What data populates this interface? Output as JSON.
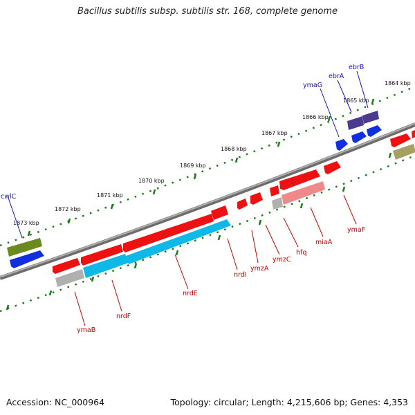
{
  "title": "Bacillus subtilis subsp. subtilis str. 168, complete genome",
  "footer": {
    "accession": "Accession: NC_000964",
    "topology": "Topology: circular; Length: 4,215,606 bp; Genes: 4,353"
  },
  "ruler_labels": [
    "1864 kbp",
    "1865 kbp",
    "1866 kbp",
    "1867 kbp",
    "1868 kbp",
    "1869 kbp",
    "1870 kbp",
    "1871 kbp",
    "1872 kbp",
    "1873 kbp"
  ],
  "top_gene_labels": [
    "ebrB",
    "ebrA",
    "ymaG",
    "cwlC"
  ],
  "bottom_gene_labels": [
    "ymaF",
    "miaA",
    "hfq",
    "ymzC",
    "ymzA",
    "nrdI",
    "nrdE",
    "nrdF",
    "ymaB"
  ],
  "colors": {
    "backbone": "#808080",
    "ruler_dot": "#1a7a1a",
    "gene_red": "#ee1111",
    "cds_cyan": "#10b8e8",
    "forward_blue": "#1030e0",
    "label_blue": "#1010cc",
    "label_red": "#cc0000",
    "olive": "#6a8a20",
    "purple": "#4a3a90"
  }
}
